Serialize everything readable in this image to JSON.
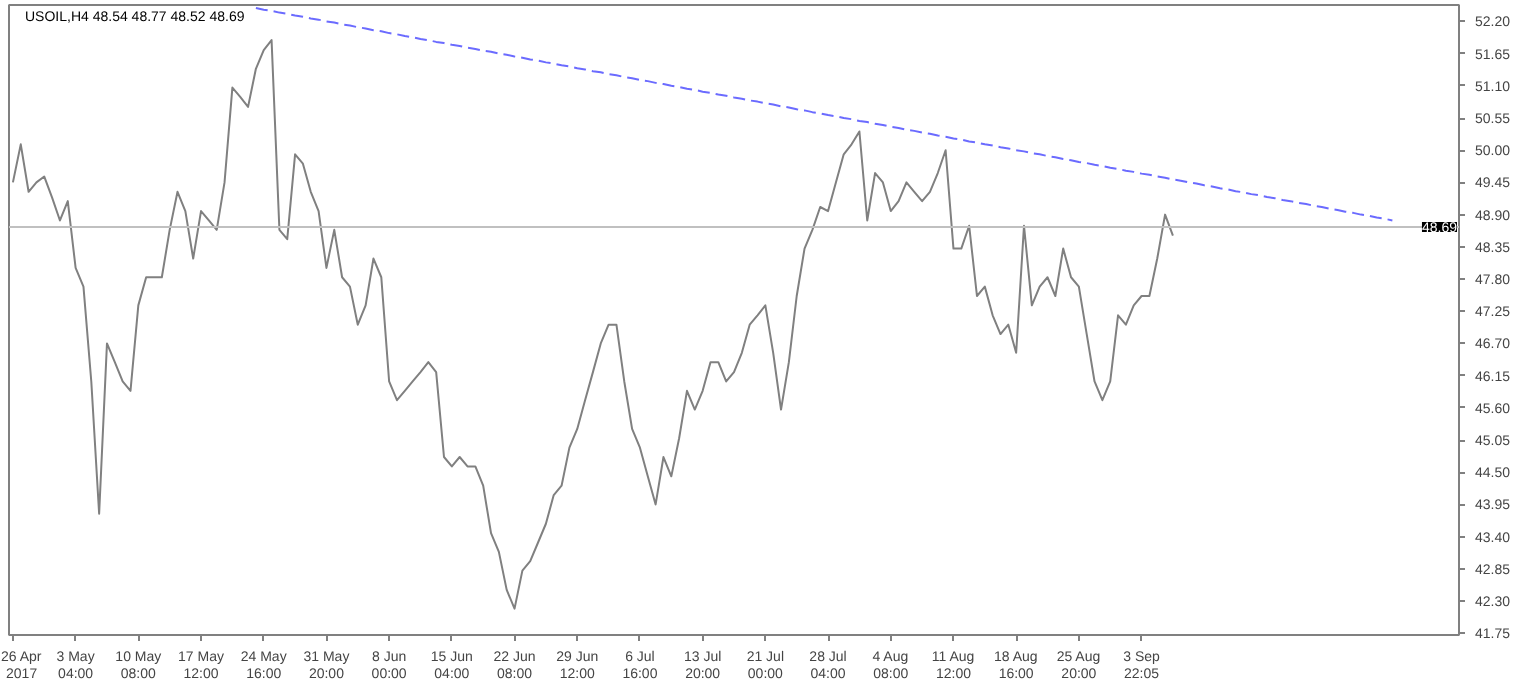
{
  "chart_data": {
    "type": "line",
    "title": "USOIL,H4  48.54 48.77 48.52 48.69",
    "categories": [
      "26 Apr 2017",
      null,
      null,
      null,
      null,
      null,
      null,
      null,
      "3 May 04:00",
      null,
      null,
      null,
      null,
      null,
      null,
      null,
      "10 May 08:00",
      null,
      null,
      null,
      null,
      null,
      null,
      null,
      "17 May 12:00",
      null,
      null,
      null,
      null,
      null,
      null,
      null,
      "24 May 16:00",
      null,
      null,
      null,
      null,
      null,
      null,
      null,
      "31 May 20:00",
      null,
      null,
      null,
      null,
      null,
      null,
      null,
      "8 Jun 00:00",
      null,
      null,
      null,
      null,
      null,
      null,
      null,
      "15 Jun 04:00",
      null,
      null,
      null,
      null,
      null,
      null,
      null,
      "22 Jun 08:00",
      null,
      null,
      null,
      null,
      null,
      null,
      null,
      "29 Jun 12:00",
      null,
      null,
      null,
      null,
      null,
      null,
      null,
      "6 Jul 16:00",
      null,
      null,
      null,
      null,
      null,
      null,
      null,
      "13 Jul 20:00",
      null,
      null,
      null,
      null,
      null,
      null,
      null,
      "21 Jul 00:00",
      null,
      null,
      null,
      null,
      null,
      null,
      null,
      "28 Jul 04:00",
      null,
      null,
      null,
      null,
      null,
      null,
      null,
      "4 Aug 08:00",
      null,
      null,
      null,
      null,
      null,
      null,
      null,
      "11 Aug 12:00",
      null,
      null,
      null,
      null,
      null,
      null,
      null,
      "18 Aug 16:00",
      null,
      null,
      null,
      null,
      null,
      null,
      null,
      "25 Aug 20:00",
      null,
      null,
      null,
      null,
      null,
      null,
      null,
      "3 Sep 22:05",
      null,
      null,
      null,
      null,
      null,
      null,
      null,
      null,
      null,
      null,
      null,
      null,
      null,
      null,
      null,
      null,
      null,
      null,
      null,
      null,
      null,
      null,
      null,
      null,
      null,
      null,
      null,
      null,
      null,
      null,
      null,
      null,
      null,
      null,
      null,
      null,
      null,
      null,
      null,
      null
    ],
    "ylim": [
      41.72,
      52.48
    ],
    "yticks": [
      {
        "value": 41.75,
        "label": "41.75"
      },
      {
        "value": 42.3,
        "label": "42.30"
      },
      42.85,
      {
        "value": 43.4,
        "label": "43.40"
      },
      43.95,
      {
        "value": 44.5,
        "label": "44.50"
      },
      45.05,
      {
        "value": 45.6,
        "label": "45.60"
      },
      46.15,
      {
        "value": 46.7,
        "label": "46.70"
      },
      47.25,
      {
        "value": 47.8,
        "label": "47.80"
      },
      48.35,
      {
        "value": 48.9,
        "label": "48.90"
      },
      49.45,
      {
        "value": 50.0,
        "label": "50.00"
      },
      50.55,
      {
        "value": 51.1,
        "label": "51.10"
      },
      51.65,
      {
        "value": 52.2,
        "label": "52.20"
      }
    ],
    "ref_lines": [
      {
        "axis": "y",
        "value": 48.69,
        "label": "48.69",
        "color": "#c0c0c0"
      }
    ],
    "series": [
      {
        "color": "#808080",
        "values": [
          49.45,
          50.1,
          49.29,
          49.45,
          49.55,
          49.19,
          48.8,
          49.13,
          47.99,
          47.67,
          46.05,
          43.79,
          46.7,
          46.38,
          46.05,
          45.89,
          47.35,
          47.83,
          47.83,
          47.83,
          48.64,
          49.29,
          48.96,
          48.15,
          48.96,
          48.8,
          48.64,
          49.45,
          51.07,
          50.91,
          50.74,
          51.39,
          51.71,
          51.88,
          48.64,
          48.48,
          49.93,
          49.77,
          49.29,
          48.96,
          47.99,
          48.64,
          47.83,
          47.67,
          47.02,
          47.35,
          48.15,
          47.83,
          46.05,
          45.73,
          45.89,
          46.05,
          46.21,
          46.38,
          46.21,
          44.76,
          44.6,
          44.76,
          44.6,
          44.6,
          44.27,
          43.46,
          43.14,
          42.49,
          42.17,
          42.82,
          42.98,
          43.3,
          43.62,
          44.11,
          44.27,
          44.92,
          45.24,
          45.73,
          46.21,
          46.7,
          47.02,
          47.02,
          46.05,
          45.24,
          44.92,
          44.43,
          43.95,
          44.76,
          44.43,
          45.08,
          45.89,
          45.57,
          45.89,
          46.38,
          46.38,
          46.05,
          46.21,
          46.54,
          47.02,
          47.18,
          47.35,
          46.54,
          45.57,
          46.38,
          47.51,
          48.32,
          48.64,
          49.03,
          48.96,
          49.45,
          49.93,
          50.1,
          50.32,
          48.8,
          49.61,
          49.45,
          48.96,
          49.13,
          49.45,
          49.29,
          49.13,
          49.29,
          49.61,
          50.0,
          48.32,
          48.32,
          48.71,
          47.51,
          47.67,
          47.18,
          46.86,
          47.02,
          46.54,
          48.71,
          47.35,
          47.67,
          47.83,
          47.51,
          48.32,
          47.83,
          47.67,
          46.86,
          46.05,
          45.73,
          46.05,
          47.18,
          47.02,
          47.35,
          47.51,
          47.51,
          48.15,
          48.9,
          48.54,
          null,
          null,
          null,
          null,
          null,
          null,
          null,
          null,
          null,
          null,
          null,
          null,
          null,
          null,
          null,
          null,
          null,
          null,
          null,
          null,
          null,
          null,
          null,
          null,
          null,
          null,
          null,
          null,
          null,
          null,
          null,
          null,
          null,
          null,
          null,
          null
        ]
      },
      {
        "color": "#6b6bff",
        "line_style": "dashed",
        "values": [
          null,
          null,
          null,
          null,
          null,
          null,
          null,
          null,
          null,
          null,
          null,
          null,
          null,
          null,
          null,
          null,
          null,
          null,
          null,
          null,
          null,
          null,
          null,
          null,
          null,
          null,
          null,
          null,
          null,
          null,
          null,
          52.43,
          52.4,
          52.38,
          52.35,
          52.33,
          52.3,
          52.28,
          52.25,
          52.23,
          52.2,
          52.18,
          52.15,
          52.13,
          52.1,
          52.08,
          52.05,
          52.03,
          52.0,
          51.98,
          51.95,
          51.93,
          51.9,
          51.88,
          51.85,
          51.83,
          51.8,
          51.78,
          51.75,
          51.73,
          51.7,
          51.68,
          51.65,
          51.63,
          51.6,
          51.58,
          51.55,
          51.53,
          51.5,
          51.48,
          51.45,
          51.43,
          51.4,
          51.38,
          51.35,
          51.33,
          51.3,
          51.28,
          51.25,
          51.23,
          51.2,
          51.18,
          51.15,
          51.13,
          51.1,
          51.08,
          51.05,
          51.03,
          51.0,
          50.98,
          50.95,
          50.93,
          50.9,
          50.88,
          50.85,
          50.83,
          50.8,
          50.78,
          50.75,
          50.73,
          50.7,
          50.68,
          50.65,
          50.63,
          50.6,
          50.58,
          50.55,
          50.53,
          50.5,
          50.48,
          50.45,
          50.43,
          50.4,
          50.38,
          50.35,
          50.33,
          50.3,
          50.28,
          50.25,
          50.23,
          50.2,
          50.18,
          50.15,
          50.13,
          50.1,
          50.08,
          50.05,
          50.03,
          50.0,
          49.98,
          49.95,
          49.93,
          49.9,
          49.88,
          49.85,
          49.83,
          49.8,
          49.78,
          49.75,
          49.73,
          49.7,
          49.68,
          49.65,
          49.63,
          49.6,
          49.58,
          49.55,
          49.53,
          49.5,
          49.48,
          49.45,
          49.43,
          49.4,
          49.38,
          49.35,
          49.33,
          49.3,
          49.28,
          49.25,
          49.23,
          49.2,
          49.18,
          49.15,
          49.13,
          49.1,
          49.08,
          49.05,
          49.03,
          49.0,
          48.98,
          48.95,
          48.93,
          48.9,
          48.88,
          48.85,
          48.83,
          48.8,
          null,
          null,
          null,
          null,
          null,
          null,
          null,
          null
        ]
      }
    ]
  }
}
